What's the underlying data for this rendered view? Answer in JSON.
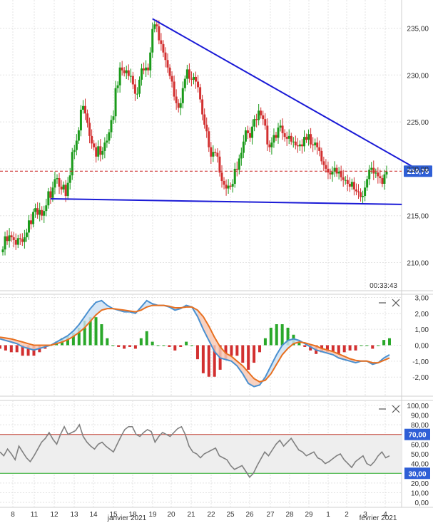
{
  "chart_data": [
    {
      "type": "candlestick",
      "ylim": [
        207,
        238
      ],
      "yticks": [
        "235,00",
        "230,00",
        "225,00",
        "220,00",
        "215,00",
        "210,00"
      ],
      "yticks_values": [
        235,
        230,
        225,
        220,
        215,
        210
      ],
      "last_price_label": "219,75",
      "last_price": 219.75,
      "countdown": "00:33:43",
      "colors": {
        "up": "#1a9a1a",
        "down": "#d23030",
        "trendline": "#1a1ad6",
        "price_line": "#cc2222",
        "price_label_bg": "#2f5fd6"
      },
      "trendlines": [
        {
          "name": "resistance",
          "from": {
            "i": 69,
            "p": 236.0
          },
          "to": {
            "i": 190,
            "p": 220.1
          }
        },
        {
          "name": "support",
          "from": {
            "i": 22,
            "p": 216.8
          },
          "to": {
            "i": 184,
            "p": 216.2
          }
        }
      ],
      "closes": [
        211.4,
        212.8,
        212.3,
        212.9,
        212.7,
        212.4,
        211.9,
        212.6,
        212.5,
        212.2,
        212.7,
        213.2,
        214.5,
        214.1,
        215.4,
        215.8,
        215.1,
        215.6,
        215.0,
        215.5,
        216.1,
        217.6,
        216.9,
        218.0,
        218.9,
        219.0,
        218.1,
        217.8,
        218.3,
        217.1,
        218.5,
        219.3,
        221.8,
        222.0,
        223.0,
        224.1,
        226.3,
        226.7,
        225.9,
        224.9,
        223.5,
        222.7,
        222.3,
        221.3,
        222.4,
        221.5,
        221.9,
        222.8,
        223.0,
        223.9,
        225.2,
        225.6,
        228.6,
        228.9,
        230.8,
        230.5,
        230.2,
        230.5,
        229.9,
        229.9,
        229.0,
        228.0,
        228.0,
        229.5,
        230.7,
        230.5,
        230.8,
        230.5,
        232.4,
        234.9,
        235.4,
        235.2,
        233.7,
        233.3,
        232.4,
        231.6,
        230.8,
        229.9,
        229.3,
        227.7,
        227.0,
        226.5,
        227.0,
        228.6,
        229.6,
        230.6,
        229.6,
        229.5,
        229.8,
        229.3,
        228.7,
        227.4,
        225.8,
        224.7,
        224.0,
        222.3,
        221.3,
        221.8,
        221.7,
        221.3,
        219.6,
        218.7,
        218.3,
        217.9,
        218.2,
        218.1,
        218.4,
        220.0,
        219.9,
        221.1,
        221.7,
        222.9,
        224.1,
        223.8,
        223.3,
        224.5,
        225.3,
        225.2,
        226.2,
        225.7,
        225.3,
        224.6,
        222.6,
        222.3,
        222.8,
        223.6,
        223.3,
        224.4,
        224.6,
        223.8,
        223.4,
        223.2,
        223.5,
        222.9,
        222.9,
        222.5,
        222.4,
        222.6,
        222.4,
        223.4,
        223.1,
        223.7,
        222.6,
        222.5,
        222.8,
        222.3,
        221.9,
        220.8,
        220.4,
        220.0,
        219.6,
        219.4,
        219.7,
        220.1,
        219.5,
        219.7,
        219.1,
        218.8,
        218.8,
        218.4,
        218.1,
        218.6,
        217.8,
        217.6,
        217.5,
        217.0,
        217.1,
        218.0,
        218.9,
        219.9,
        220.1,
        219.5,
        219.6,
        219.2,
        219.0,
        218.4,
        219.4,
        219.7
      ],
      "x_labels": [
        "8",
        "11",
        "12",
        "13",
        "14",
        "15",
        "18",
        "19",
        "20",
        "21",
        "22",
        "25",
        "26",
        "27",
        "28",
        "29",
        "1",
        "2",
        "3",
        "4"
      ],
      "month_labels": [
        "janvier 2021",
        "février 2021"
      ]
    },
    {
      "type": "macd",
      "ylim": [
        -3.2,
        3.2
      ],
      "yticks": [
        "3,00",
        "2,00",
        "1,00",
        "0,00",
        "-1,00",
        "-2,00"
      ],
      "yticks_values": [
        3,
        2,
        1,
        0,
        -1,
        -2
      ],
      "colors": {
        "macd": "#4a90d0",
        "signal": "#e87020",
        "fill_up": "#cfe2f3",
        "fill_down": "#f7c9b5",
        "hist_up": "#2aa82a",
        "hist_down": "#d23030"
      },
      "macd": [
        0.4,
        0.3,
        0.2,
        0.1,
        -0.1,
        -0.2,
        -0.3,
        -0.2,
        -0.1,
        0.0,
        0.2,
        0.4,
        0.6,
        0.9,
        1.3,
        1.8,
        2.3,
        2.7,
        2.8,
        2.5,
        2.3,
        2.2,
        2.1,
        2.1,
        2.0,
        2.4,
        2.8,
        2.6,
        2.5,
        2.5,
        2.4,
        2.2,
        2.3,
        2.5,
        2.4,
        1.8,
        1.0,
        0.3,
        -0.4,
        -0.8,
        -0.9,
        -1.0,
        -1.3,
        -1.8,
        -2.4,
        -2.6,
        -2.5,
        -2.0,
        -1.3,
        -0.6,
        0.0,
        0.3,
        0.4,
        0.3,
        0.1,
        -0.1,
        -0.3,
        -0.4,
        -0.5,
        -0.6,
        -0.8,
        -0.9,
        -1.0,
        -1.1,
        -1.0,
        -1.0,
        -1.2,
        -1.1,
        -0.8,
        -0.6
      ],
      "signal": [
        0.5,
        0.45,
        0.4,
        0.3,
        0.2,
        0.1,
        0.0,
        0.0,
        0.0,
        0.0,
        0.1,
        0.2,
        0.35,
        0.55,
        0.8,
        1.1,
        1.5,
        1.9,
        2.2,
        2.3,
        2.3,
        2.25,
        2.2,
        2.15,
        2.1,
        2.2,
        2.4,
        2.5,
        2.5,
        2.5,
        2.45,
        2.35,
        2.35,
        2.4,
        2.4,
        2.2,
        1.8,
        1.2,
        0.5,
        -0.1,
        -0.5,
        -0.7,
        -1.0,
        -1.3,
        -1.7,
        -2.1,
        -2.3,
        -2.2,
        -1.8,
        -1.2,
        -0.6,
        -0.2,
        0.1,
        0.2,
        0.15,
        0.05,
        -0.05,
        -0.2,
        -0.3,
        -0.4,
        -0.55,
        -0.7,
        -0.85,
        -0.95,
        -1.0,
        -1.0,
        -1.1,
        -1.1,
        -0.95,
        -0.8
      ]
    },
    {
      "type": "rsi",
      "ylim": [
        -5,
        105
      ],
      "yticks": [
        "100,00",
        "90,00",
        "80,00",
        "70,00",
        "60,00",
        "50,00",
        "40,00",
        "30,00",
        "20,00",
        "10,00",
        "0,00"
      ],
      "yticks_values": [
        100,
        90,
        80,
        70,
        60,
        50,
        40,
        30,
        20,
        10,
        0
      ],
      "overbought": 70,
      "oversold": 30,
      "overbought_label": "70,00",
      "oversold_label": "30,00",
      "colors": {
        "line": "#808080",
        "band": "#eeeeee",
        "ob": "#c0392b",
        "os": "#27a827",
        "label_bg": "#2f5fd6"
      },
      "values": [
        52,
        48,
        55,
        50,
        44,
        58,
        52,
        46,
        42,
        48,
        55,
        62,
        66,
        72,
        65,
        60,
        70,
        78,
        70,
        72,
        74,
        80,
        68,
        62,
        58,
        55,
        60,
        62,
        58,
        55,
        52,
        60,
        68,
        75,
        78,
        78,
        70,
        68,
        72,
        75,
        73,
        62,
        68,
        72,
        70,
        68,
        72,
        76,
        78,
        70,
        58,
        52,
        50,
        46,
        50,
        52,
        54,
        56,
        48,
        46,
        44,
        38,
        34,
        36,
        38,
        32,
        26,
        30,
        38,
        45,
        52,
        48,
        54,
        60,
        64,
        58,
        62,
        66,
        60,
        54,
        52,
        48,
        50,
        52,
        46,
        44,
        40,
        42,
        45,
        48,
        50,
        44,
        40,
        36,
        42,
        45,
        48,
        40,
        38,
        42,
        48,
        52,
        46,
        48
      ]
    }
  ]
}
